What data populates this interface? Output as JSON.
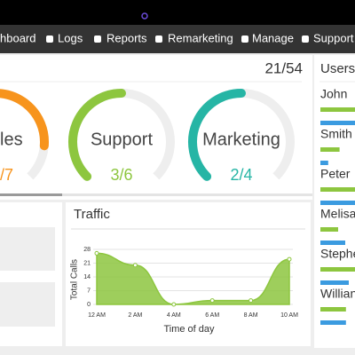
{
  "nav": {
    "items": [
      "hboard",
      "Logs",
      "Reports",
      "Remarketing",
      "Manage",
      "Support"
    ]
  },
  "summary": {
    "count": "21/54"
  },
  "gauges": [
    {
      "name": "les",
      "ratio": "/7",
      "fraction": 0.85,
      "color": "#f7941d"
    },
    {
      "name": "Support",
      "ratio": "3/6",
      "fraction": 0.5,
      "color": "#8dc63f"
    },
    {
      "name": "Marketing",
      "ratio": "2/4",
      "fraction": 0.5,
      "color": "#26b5a5"
    }
  ],
  "users": {
    "title": "Users",
    "list": [
      {
        "name": "John",
        "green": 100,
        "blue": 100
      },
      {
        "name": "Smith",
        "green": 27,
        "blue": 11
      },
      {
        "name": "Peter",
        "green": 100,
        "blue": 60
      },
      {
        "name": "Melisa",
        "green": 25,
        "blue": 35
      },
      {
        "name": "Stephe",
        "green": 100,
        "blue": 40
      },
      {
        "name": "Willian",
        "green": 36,
        "blue": 36
      }
    ]
  },
  "traffic": {
    "title": "Traffic",
    "type": "area",
    "categories": [
      "12 AM",
      "2 AM",
      "4 AM",
      "6 AM",
      "8 AM",
      "10 AM"
    ],
    "values": [
      26,
      20,
      0,
      2,
      2,
      23
    ],
    "color": "#8dc63f",
    "ylim": [
      0,
      28
    ],
    "yticks": [
      0,
      7,
      14,
      21,
      28
    ],
    "grid": true,
    "y_label": "Total Calls",
    "x_label": "Time of day"
  }
}
